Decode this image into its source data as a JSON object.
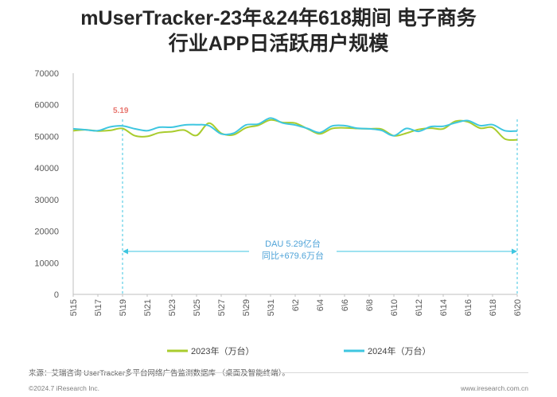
{
  "header": {
    "title_line1": "mUserTracker-23年&24年618期间 电子商务",
    "title_line2": "行业APP日活跃用户规模"
  },
  "annotations": {
    "peak_label": "5.19",
    "callout_line1": "DAU 5.29亿台",
    "callout_line2": "同比+679.6万台"
  },
  "footer": {
    "source": "来源：艾瑞咨询 UserTracker多平台网络广告监测数据库 （桌面及智能终端）。",
    "copyright": "©2024.7 iResearch Inc.",
    "site": "www.iresearch.com.cn"
  },
  "colors": {
    "series_2023": "#a9cc2d",
    "series_2024": "#3ec6e0",
    "callout": "#4fa3d8",
    "peak_label": "#e8766f"
  },
  "chart_data": {
    "type": "line",
    "ylim": [
      0,
      70000
    ],
    "yticks": [
      0,
      10000,
      20000,
      30000,
      40000,
      50000,
      60000,
      70000
    ],
    "x": [
      "5\\15",
      "5\\16",
      "5\\17",
      "5\\18",
      "5\\19",
      "5\\20",
      "5\\21",
      "5\\22",
      "5\\23",
      "5\\24",
      "5\\25",
      "5\\26",
      "5\\27",
      "5\\28",
      "5\\29",
      "5\\30",
      "5\\31",
      "6\\1",
      "6\\2",
      "6\\3",
      "6\\4",
      "6\\5",
      "6\\6",
      "6\\7",
      "6\\8",
      "6\\9",
      "6\\10",
      "6\\11",
      "6\\12",
      "6\\13",
      "6\\14",
      "6\\15",
      "6\\16",
      "6\\17",
      "6\\18",
      "6\\19",
      "6\\20"
    ],
    "xtick_labels": [
      "5\\15",
      "5\\17",
      "5\\19",
      "5\\21",
      "5\\23",
      "5\\25",
      "5\\27",
      "5\\29",
      "5\\31",
      "6\\2",
      "6\\4",
      "6\\6",
      "6\\8",
      "6\\10",
      "6\\12",
      "6\\14",
      "6\\16",
      "6\\18",
      "6\\20"
    ],
    "marker_x": [
      "5\\19",
      "6\\20"
    ],
    "series": [
      {
        "name": "2023年（万台）",
        "values": [
          51800,
          52100,
          51700,
          51900,
          52500,
          50200,
          50000,
          51200,
          51500,
          52000,
          50300,
          54200,
          51000,
          50500,
          52700,
          53500,
          55200,
          54400,
          54200,
          52400,
          50800,
          52500,
          52700,
          52500,
          52400,
          52300,
          50200,
          51000,
          52200,
          52600,
          52400,
          54800,
          54600,
          52600,
          52800,
          49200,
          48900
        ]
      },
      {
        "name": "2024年（万台）",
        "values": [
          52400,
          52100,
          51800,
          53000,
          53300,
          52400,
          51800,
          52900,
          52900,
          53600,
          53700,
          53400,
          50800,
          51000,
          53600,
          53900,
          55800,
          54200,
          53600,
          52500,
          51200,
          53300,
          53400,
          52600,
          52400,
          51900,
          50200,
          52500,
          51600,
          53100,
          53200,
          54300,
          55000,
          53400,
          53700,
          51800,
          51700
        ]
      }
    ]
  }
}
